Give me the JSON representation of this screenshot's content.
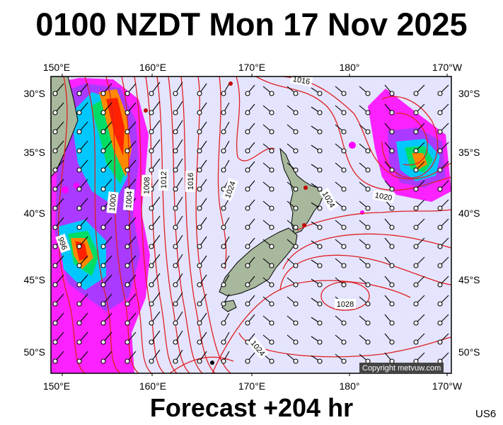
{
  "header": {
    "title": "0100 NZDT Mon 17 Nov 2025"
  },
  "footer": {
    "forecast": "Forecast +204 hr",
    "region": "US6",
    "copyright": "Copyright metvuw.com"
  },
  "map": {
    "lon_labels": [
      "150°E",
      "160°E",
      "170°E",
      "180°",
      "170°W"
    ],
    "lat_labels": [
      "30°S",
      "35°S",
      "40°S",
      "45°S",
      "50°S"
    ],
    "isobar_labels": [
      "1016",
      "1008",
      "1012",
      "1016",
      "1004",
      "1000",
      "996",
      "1020",
      "1024",
      "1024",
      "1028",
      "1024"
    ],
    "colors": {
      "sea": "#e4e4ff",
      "isobar": "#e02020",
      "land": "#a8b89c",
      "rain_light": "#ff00ff",
      "rain_mid": "#00c8ff",
      "rain_heavy": "#ff8800"
    }
  }
}
